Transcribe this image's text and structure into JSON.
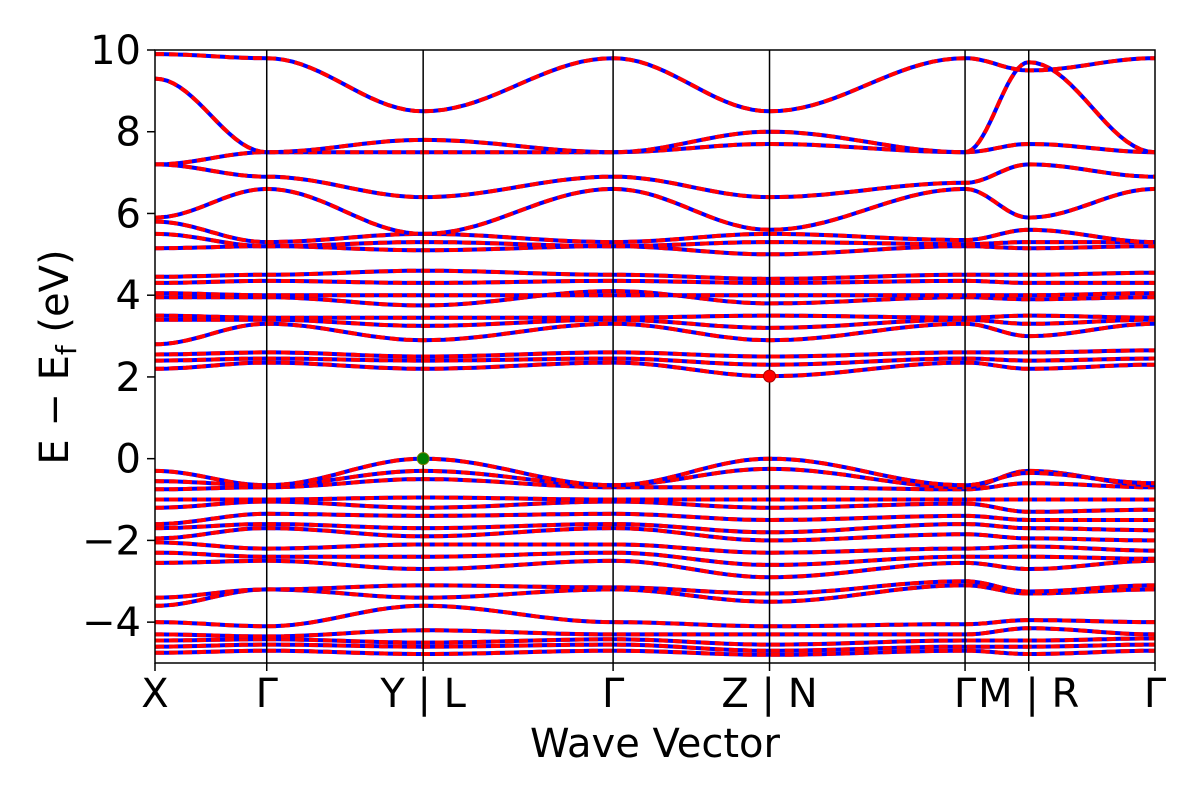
{
  "chart_data": {
    "type": "line",
    "xlabel": "Wave Vector",
    "ylabel": "E − E",
    "ylabel_sub": "f",
    "ylabel_unit": " (eV)",
    "ylim": [
      -5,
      10
    ],
    "yticks": [
      -4,
      -2,
      0,
      2,
      4,
      6,
      8,
      10
    ],
    "ytick_labels": [
      "−4",
      "−2",
      "0",
      "2",
      "4",
      "6",
      "8",
      "10"
    ],
    "grid": false,
    "kpath": [
      {
        "label": "X",
        "x": 0.0
      },
      {
        "label": "Γ",
        "x": 1.0
      },
      {
        "label": "Y | L",
        "x": 2.4
      },
      {
        "label": "Γ",
        "x": 4.1
      },
      {
        "label": "Z | N",
        "x": 5.5
      },
      {
        "label": "Γ",
        "x": 7.25
      },
      {
        "label": "M | R",
        "x": 7.82
      },
      {
        "label": "Γ",
        "x": 8.95
      }
    ],
    "series_colors": {
      "spin_up": "#ff0000",
      "spin_down": "#0000ff"
    },
    "vbm": {
      "x": 2.4,
      "y": 0.0,
      "color": "#008000"
    },
    "cbm": {
      "x": 5.5,
      "y": 2.02,
      "color": "#ff0000"
    },
    "bands": [
      [
        [
          0,
          -4.75
        ],
        [
          1,
          -4.7
        ],
        [
          2.4,
          -4.78
        ],
        [
          4.1,
          -4.7
        ],
        [
          5.5,
          -4.8
        ],
        [
          7.25,
          -4.7
        ],
        [
          7.82,
          -4.78
        ],
        [
          8.95,
          -4.7
        ]
      ],
      [
        [
          0,
          -4.6
        ],
        [
          1,
          -4.55
        ],
        [
          2.4,
          -4.6
        ],
        [
          4.1,
          -4.55
        ],
        [
          5.5,
          -4.7
        ],
        [
          7.25,
          -4.6
        ],
        [
          7.82,
          -4.6
        ],
        [
          8.95,
          -4.55
        ]
      ],
      [
        [
          0,
          -4.45
        ],
        [
          1,
          -4.42
        ],
        [
          2.4,
          -4.5
        ],
        [
          4.1,
          -4.42
        ],
        [
          5.5,
          -4.55
        ],
        [
          7.25,
          -4.45
        ],
        [
          7.82,
          -4.45
        ],
        [
          8.95,
          -4.4
        ]
      ],
      [
        [
          0,
          -4.3
        ],
        [
          1,
          -4.35
        ],
        [
          2.4,
          -4.2
        ],
        [
          4.1,
          -4.3
        ],
        [
          5.5,
          -4.3
        ],
        [
          7.25,
          -4.3
        ],
        [
          7.82,
          -4.15
        ],
        [
          8.95,
          -4.3
        ]
      ],
      [
        [
          0,
          -4.0
        ],
        [
          1,
          -4.1
        ],
        [
          2.4,
          -3.6
        ],
        [
          4.1,
          -4.0
        ],
        [
          5.5,
          -4.1
        ],
        [
          7.25,
          -4.05
        ],
        [
          7.82,
          -3.95
        ],
        [
          8.95,
          -4.0
        ]
      ],
      [
        [
          0,
          -3.6
        ],
        [
          1,
          -3.2
        ],
        [
          2.4,
          -3.4
        ],
        [
          4.1,
          -3.2
        ],
        [
          5.5,
          -3.5
        ],
        [
          7.25,
          -3.1
        ],
        [
          7.82,
          -3.3
        ],
        [
          8.95,
          -3.2
        ]
      ],
      [
        [
          0,
          -3.4
        ],
        [
          1,
          -3.2
        ],
        [
          2.4,
          -3.1
        ],
        [
          4.1,
          -3.15
        ],
        [
          5.5,
          -3.3
        ],
        [
          7.25,
          -3.0
        ],
        [
          7.82,
          -3.25
        ],
        [
          8.95,
          -3.1
        ]
      ],
      [
        [
          0,
          -2.55
        ],
        [
          1,
          -2.5
        ],
        [
          2.4,
          -2.7
        ],
        [
          4.1,
          -2.5
        ],
        [
          5.5,
          -2.9
        ],
        [
          7.25,
          -2.55
        ],
        [
          7.82,
          -2.7
        ],
        [
          8.95,
          -2.5
        ]
      ],
      [
        [
          0,
          -2.3
        ],
        [
          1,
          -2.4
        ],
        [
          2.4,
          -2.4
        ],
        [
          4.1,
          -2.3
        ],
        [
          5.5,
          -2.6
        ],
        [
          7.25,
          -2.4
        ],
        [
          7.82,
          -2.4
        ],
        [
          8.95,
          -2.45
        ]
      ],
      [
        [
          0,
          -2.05
        ],
        [
          1,
          -2.2
        ],
        [
          2.4,
          -2.1
        ],
        [
          4.1,
          -2.1
        ],
        [
          5.5,
          -2.3
        ],
        [
          7.25,
          -2.2
        ],
        [
          7.82,
          -2.15
        ],
        [
          8.95,
          -2.25
        ]
      ],
      [
        [
          0,
          -1.95
        ],
        [
          1,
          -1.7
        ],
        [
          2.4,
          -1.9
        ],
        [
          4.1,
          -1.7
        ],
        [
          5.5,
          -2.0
        ],
        [
          7.25,
          -1.85
        ],
        [
          7.82,
          -1.95
        ],
        [
          8.95,
          -2.0
        ]
      ],
      [
        [
          0,
          -1.7
        ],
        [
          1,
          -1.6
        ],
        [
          2.4,
          -1.7
        ],
        [
          4.1,
          -1.6
        ],
        [
          5.5,
          -1.8
        ],
        [
          7.25,
          -1.6
        ],
        [
          7.82,
          -1.7
        ],
        [
          8.95,
          -1.75
        ]
      ],
      [
        [
          0,
          -1.6
        ],
        [
          1,
          -1.35
        ],
        [
          2.4,
          -1.4
        ],
        [
          4.1,
          -1.35
        ],
        [
          5.5,
          -1.5
        ],
        [
          7.25,
          -1.4
        ],
        [
          7.82,
          -1.5
        ],
        [
          8.95,
          -1.5
        ]
      ],
      [
        [
          0,
          -1.2
        ],
        [
          1,
          -1.05
        ],
        [
          2.4,
          -1.2
        ],
        [
          4.1,
          -1.05
        ],
        [
          5.5,
          -1.2
        ],
        [
          7.25,
          -1.1
        ],
        [
          7.82,
          -1.3
        ],
        [
          8.95,
          -1.25
        ]
      ],
      [
        [
          0,
          -1.0
        ],
        [
          1,
          -1.0
        ],
        [
          2.4,
          -0.95
        ],
        [
          4.1,
          -1.0
        ],
        [
          5.5,
          -1.0
        ],
        [
          7.25,
          -1.0
        ],
        [
          7.82,
          -1.0
        ],
        [
          8.95,
          -1.0
        ]
      ],
      [
        [
          0,
          -0.75
        ],
        [
          1,
          -0.7
        ],
        [
          2.4,
          -0.5
        ],
        [
          4.1,
          -0.7
        ],
        [
          5.5,
          -0.7
        ],
        [
          7.25,
          -0.75
        ],
        [
          7.82,
          -0.6
        ],
        [
          8.95,
          -0.7
        ]
      ],
      [
        [
          0,
          -0.3
        ],
        [
          1,
          -0.65
        ],
        [
          2.4,
          -0.3
        ],
        [
          4.1,
          -0.65
        ],
        [
          5.5,
          -0.25
        ],
        [
          7.25,
          -0.7
        ],
        [
          7.82,
          -0.3
        ],
        [
          8.95,
          -0.65
        ]
      ],
      [
        [
          0,
          -0.55
        ],
        [
          1,
          -0.65
        ],
        [
          2.4,
          0.0
        ],
        [
          4.1,
          -0.65
        ],
        [
          5.5,
          0.0
        ],
        [
          7.25,
          -0.65
        ],
        [
          7.82,
          -0.35
        ],
        [
          8.95,
          -0.6
        ]
      ],
      [
        [
          0,
          2.2
        ],
        [
          1,
          2.35
        ],
        [
          2.4,
          2.2
        ],
        [
          4.1,
          2.35
        ],
        [
          5.5,
          2.02
        ],
        [
          7.25,
          2.35
        ],
        [
          7.82,
          2.2
        ],
        [
          8.95,
          2.3
        ]
      ],
      [
        [
          0,
          2.4
        ],
        [
          1,
          2.45
        ],
        [
          2.4,
          2.4
        ],
        [
          4.1,
          2.45
        ],
        [
          5.5,
          2.3
        ],
        [
          7.25,
          2.45
        ],
        [
          7.82,
          2.4
        ],
        [
          8.95,
          2.45
        ]
      ],
      [
        [
          0,
          2.55
        ],
        [
          1,
          2.6
        ],
        [
          2.4,
          2.5
        ],
        [
          4.1,
          2.6
        ],
        [
          5.5,
          2.5
        ],
        [
          7.25,
          2.6
        ],
        [
          7.82,
          2.6
        ],
        [
          8.95,
          2.65
        ]
      ],
      [
        [
          0,
          2.8
        ],
        [
          1,
          3.3
        ],
        [
          2.4,
          2.9
        ],
        [
          4.1,
          3.3
        ],
        [
          5.5,
          2.9
        ],
        [
          7.25,
          3.3
        ],
        [
          7.82,
          3.0
        ],
        [
          8.95,
          3.3
        ]
      ],
      [
        [
          0,
          3.4
        ],
        [
          1,
          3.4
        ],
        [
          2.4,
          3.25
        ],
        [
          4.1,
          3.4
        ],
        [
          5.5,
          3.2
        ],
        [
          7.25,
          3.4
        ],
        [
          7.82,
          3.3
        ],
        [
          8.95,
          3.4
        ]
      ],
      [
        [
          0,
          3.5
        ],
        [
          1,
          3.45
        ],
        [
          2.4,
          3.45
        ],
        [
          4.1,
          3.45
        ],
        [
          5.5,
          3.5
        ],
        [
          7.25,
          3.45
        ],
        [
          7.82,
          3.5
        ],
        [
          8.95,
          3.45
        ]
      ],
      [
        [
          0,
          3.95
        ],
        [
          1,
          3.95
        ],
        [
          2.4,
          3.75
        ],
        [
          4.1,
          4.1
        ],
        [
          5.5,
          3.8
        ],
        [
          7.25,
          3.95
        ],
        [
          7.82,
          3.9
        ],
        [
          8.95,
          3.95
        ]
      ],
      [
        [
          0,
          4.05
        ],
        [
          1,
          4.0
        ],
        [
          2.4,
          4.0
        ],
        [
          4.1,
          4.0
        ],
        [
          5.5,
          4.0
        ],
        [
          7.25,
          4.0
        ],
        [
          7.82,
          4.0
        ],
        [
          8.95,
          4.05
        ]
      ],
      [
        [
          0,
          4.3
        ],
        [
          1,
          4.35
        ],
        [
          2.4,
          4.3
        ],
        [
          4.1,
          4.35
        ],
        [
          5.5,
          4.3
        ],
        [
          7.25,
          4.35
        ],
        [
          7.82,
          4.3
        ],
        [
          8.95,
          4.3
        ]
      ],
      [
        [
          0,
          4.45
        ],
        [
          1,
          4.5
        ],
        [
          2.4,
          4.6
        ],
        [
          4.1,
          4.5
        ],
        [
          5.5,
          4.4
        ],
        [
          7.25,
          4.5
        ],
        [
          7.82,
          4.5
        ],
        [
          8.95,
          4.55
        ]
      ],
      [
        [
          0,
          5.15
        ],
        [
          1,
          5.2
        ],
        [
          2.4,
          5.1
        ],
        [
          4.1,
          5.2
        ],
        [
          5.5,
          5.0
        ],
        [
          7.25,
          5.2
        ],
        [
          7.82,
          5.15
        ],
        [
          8.95,
          5.2
        ]
      ],
      [
        [
          0,
          5.5
        ],
        [
          1,
          5.2
        ],
        [
          2.4,
          5.3
        ],
        [
          4.1,
          5.2
        ],
        [
          5.5,
          5.3
        ],
        [
          7.25,
          5.25
        ],
        [
          7.82,
          5.3
        ],
        [
          8.95,
          5.3
        ]
      ],
      [
        [
          0,
          5.8
        ],
        [
          1,
          5.3
        ],
        [
          2.4,
          5.5
        ],
        [
          4.1,
          5.3
        ],
        [
          5.5,
          5.5
        ],
        [
          7.25,
          5.35
        ],
        [
          7.82,
          5.6
        ],
        [
          8.95,
          5.3
        ]
      ],
      [
        [
          0,
          5.9
        ],
        [
          1,
          6.6
        ],
        [
          2.4,
          5.5
        ],
        [
          4.1,
          6.6
        ],
        [
          5.5,
          5.6
        ],
        [
          7.25,
          6.6
        ],
        [
          7.82,
          5.9
        ],
        [
          8.95,
          6.6
        ]
      ],
      [
        [
          0,
          7.2
        ],
        [
          1,
          6.9
        ],
        [
          2.4,
          6.4
        ],
        [
          4.1,
          6.9
        ],
        [
          5.5,
          6.4
        ],
        [
          7.25,
          6.75
        ],
        [
          7.82,
          7.2
        ],
        [
          8.95,
          6.9
        ]
      ],
      [
        [
          0,
          7.2
        ],
        [
          1,
          7.5
        ],
        [
          2.4,
          7.5
        ],
        [
          4.1,
          7.5
        ],
        [
          5.5,
          7.7
        ],
        [
          7.25,
          7.5
        ],
        [
          7.82,
          7.7
        ],
        [
          8.95,
          7.5
        ]
      ],
      [
        [
          0,
          9.3
        ],
        [
          1,
          7.5
        ],
        [
          2.4,
          7.8
        ],
        [
          4.1,
          7.5
        ],
        [
          5.5,
          8.0
        ],
        [
          7.25,
          7.5
        ],
        [
          7.82,
          9.7
        ],
        [
          8.95,
          7.5
        ]
      ],
      [
        [
          0,
          9.9
        ],
        [
          1,
          9.8
        ],
        [
          2.4,
          8.5
        ],
        [
          4.1,
          9.8
        ],
        [
          5.5,
          8.5
        ],
        [
          7.25,
          9.8
        ],
        [
          7.82,
          9.5
        ],
        [
          8.95,
          9.8
        ]
      ]
    ]
  }
}
